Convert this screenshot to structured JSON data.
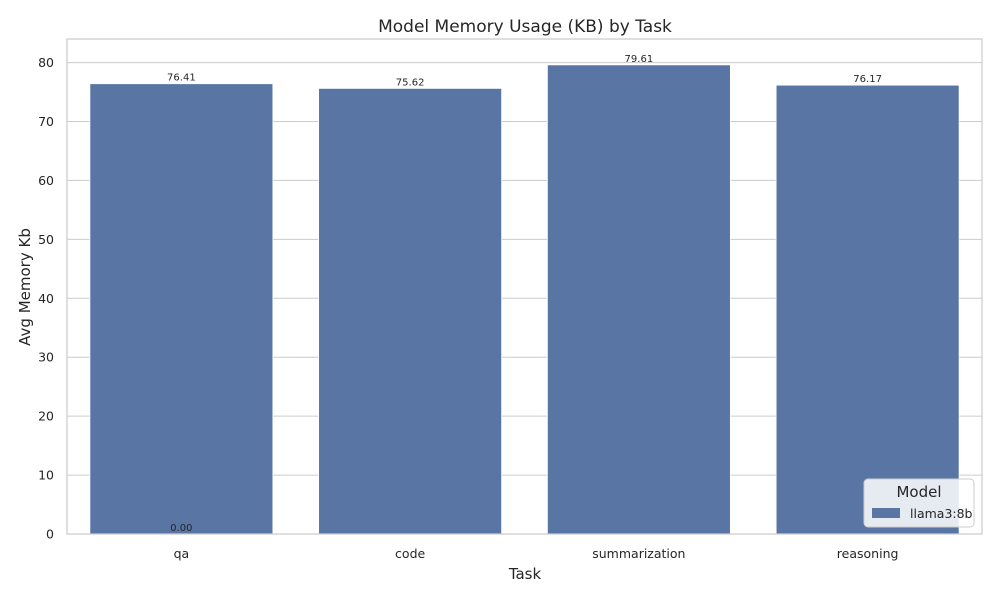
{
  "chart_data": {
    "type": "bar",
    "title": "Model Memory Usage (KB) by Task",
    "xlabel": "Task",
    "ylabel": "Avg Memory Kb",
    "categories": [
      "qa",
      "code",
      "summarization",
      "reasoning"
    ],
    "series": [
      {
        "name": "llama3:8b",
        "values": [
          76.41,
          75.62,
          79.61,
          76.17
        ],
        "color": "#5875a4"
      }
    ],
    "data_labels": [
      "76.41",
      "75.62",
      "79.61",
      "76.17"
    ],
    "extra_annotation": {
      "text": "0.00",
      "category": "qa",
      "y": 0
    },
    "ylim": [
      0,
      84
    ],
    "yticks": [
      0,
      10,
      20,
      30,
      40,
      50,
      60,
      70,
      80
    ],
    "grid": true,
    "legend": {
      "title": "Model",
      "placement": "bottom-right"
    }
  }
}
